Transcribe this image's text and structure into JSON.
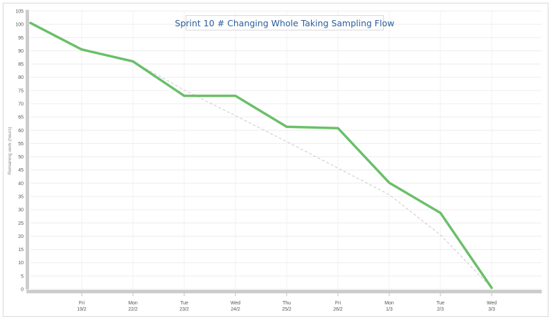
{
  "chart_data": {
    "type": "line",
    "title": "Sprint 10 # Changing Whole Taking Sampling Flow",
    "ylabel": "Remaining work (hours)",
    "ylim": [
      0,
      105
    ],
    "yticks": [
      0,
      5,
      10,
      15,
      20,
      25,
      30,
      35,
      40,
      45,
      50,
      55,
      60,
      65,
      70,
      75,
      80,
      85,
      90,
      95,
      100,
      105
    ],
    "categories": [
      {
        "day": "",
        "date": ""
      },
      {
        "day": "Fri",
        "date": "19/2"
      },
      {
        "day": "Mon",
        "date": "22/2"
      },
      {
        "day": "Tue",
        "date": "23/2"
      },
      {
        "day": "Wed",
        "date": "24/2"
      },
      {
        "day": "Thu",
        "date": "25/2"
      },
      {
        "day": "Fri",
        "date": "26/2"
      },
      {
        "day": "Mon",
        "date": "1/3"
      },
      {
        "day": "Tue",
        "date": "2/3"
      },
      {
        "day": "Wed",
        "date": "3/3"
      }
    ],
    "series": [
      {
        "values": [
          100.5,
          90.5,
          86,
          73,
          73,
          61.3,
          60.8,
          40.2,
          28.8,
          0.5
        ],
        "color": "#6abf69"
      },
      {
        "values": [
          null,
          null,
          86,
          75.2,
          65.5,
          55.7,
          45.7,
          35.7,
          20.5,
          0.5
        ],
        "color": "#c8c8c8",
        "style": "dashed"
      }
    ],
    "grid": true
  }
}
